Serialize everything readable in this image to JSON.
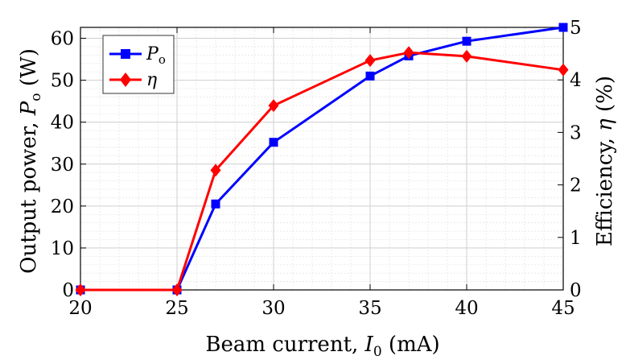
{
  "chart_data": {
    "type": "line",
    "x": [
      20,
      25,
      27,
      30,
      35,
      37,
      40,
      45
    ],
    "series": [
      {
        "name": "P_o",
        "legend_label": "P",
        "legend_subscript": "o",
        "axis": "left",
        "color": "#0000ff",
        "marker": "square",
        "values": [
          0,
          0,
          20.5,
          35.2,
          51.0,
          55.8,
          59.3,
          62.6
        ]
      },
      {
        "name": "eta",
        "legend_label": "η",
        "axis": "right",
        "color": "#ff0000",
        "marker": "diamond",
        "values": [
          0,
          0,
          2.28,
          3.51,
          4.37,
          4.52,
          4.45,
          4.19
        ]
      }
    ],
    "xlabel": {
      "text": "Beam current, ",
      "symbol": "I",
      "subscript": "0",
      "unit": " (mA)"
    },
    "ylabel_left": {
      "text": "Output power, ",
      "symbol": "P",
      "subscript": "o",
      "unit": " (W)"
    },
    "ylabel_right": {
      "text": "Efficiency, ",
      "symbol": "η",
      "unit": " (%)"
    },
    "xlim": [
      20,
      45
    ],
    "ylim_left": [
      0,
      62.6
    ],
    "ylim_right": [
      0,
      5
    ],
    "xticks": [
      "20",
      "25",
      "30",
      "35",
      "40",
      "45"
    ],
    "yticks_left": [
      "0",
      "10",
      "20",
      "30",
      "40",
      "50",
      "60"
    ],
    "yticks_right": [
      "0",
      "1",
      "2",
      "3",
      "4",
      "5"
    ],
    "grid": true,
    "minor_grid": true,
    "legend_position": "top-left"
  }
}
